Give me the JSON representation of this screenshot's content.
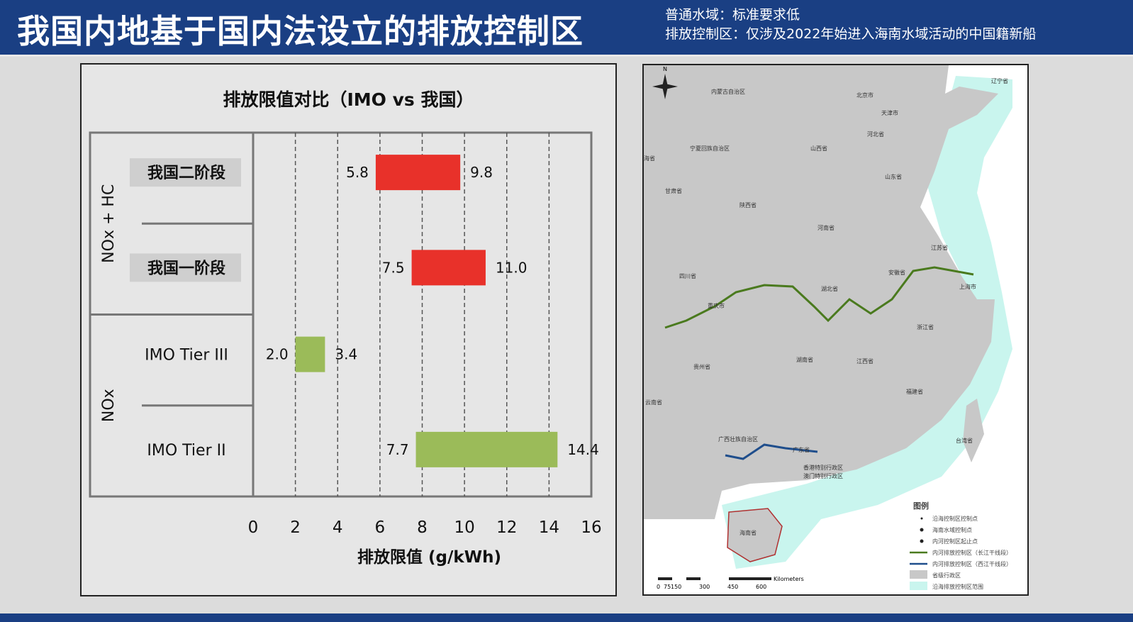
{
  "header": {
    "title": "我国内地基于国内法设立的排放控制区",
    "notes": [
      "普通水域：标准要求低",
      "排放控制区：仅涉及2022年始进入海南水域活动的中国籍新船"
    ]
  },
  "chart_data": {
    "type": "bar",
    "subtype": "floating-range",
    "title": "排放限值对比（IMO vs 我国）",
    "xlabel": "排放限值 (g/kWh)",
    "xlim": [
      0,
      16
    ],
    "xticks": [
      0,
      2,
      4,
      6,
      8,
      10,
      12,
      14,
      16
    ],
    "grid": "vertical-dashed",
    "groups": [
      {
        "label": "NOx + HC",
        "categories": [
          {
            "label": "我国二阶段",
            "low": 5.8,
            "high": 9.8,
            "low_label": "5.8",
            "high_label": "9.8",
            "color": "#e8312a"
          },
          {
            "label": "我国一阶段",
            "low": 7.5,
            "high": 11.0,
            "low_label": "7.5",
            "high_label": "11.0",
            "color": "#e8312a"
          }
        ]
      },
      {
        "label": "NOx",
        "categories": [
          {
            "label": "IMO Tier III",
            "low": 2.0,
            "high": 3.4,
            "low_label": "2.0",
            "high_label": "3.4",
            "color": "#9bbb59"
          },
          {
            "label": "IMO Tier II",
            "low": 7.7,
            "high": 14.4,
            "low_label": "7.7",
            "high_label": "14.4",
            "color": "#9bbb59"
          }
        ]
      }
    ]
  },
  "map": {
    "north": "N",
    "labels": [
      "内蒙古自治区",
      "北京市",
      "辽宁省",
      "天津市",
      "河北省",
      "宁夏回族自治区",
      "山西省",
      "山东省",
      "甘肃省",
      "陕西省",
      "河南省",
      "江苏省",
      "四川省",
      "安徽省",
      "湖北省",
      "上海市",
      "重庆市",
      "浙江省",
      "湖南省",
      "贵州省",
      "江西省",
      "福建省",
      "云南省",
      "广西壮族自治区",
      "广东省",
      "台湾省",
      "香港特别行政区",
      "澳门特别行政区",
      "海南省",
      "海省"
    ],
    "legend": {
      "title": "图例",
      "items": [
        "沿海控制区控制点",
        "海南水域控制点",
        "内河控制区起止点",
        "内河排放控制区（长江干线段）",
        "内河排放控制区（西江干线段）",
        "省级行政区",
        "沿海排放控制区范围"
      ]
    },
    "scale": {
      "unit": "Kilometers",
      "ticks": [
        "0",
        "75",
        "150",
        "300",
        "450",
        "600"
      ]
    },
    "colors": {
      "land": "#c8c8c8",
      "eca": "#c9f5ee",
      "yangtze": "#4a7a1e",
      "xijiang": "#1f4e8c"
    }
  }
}
